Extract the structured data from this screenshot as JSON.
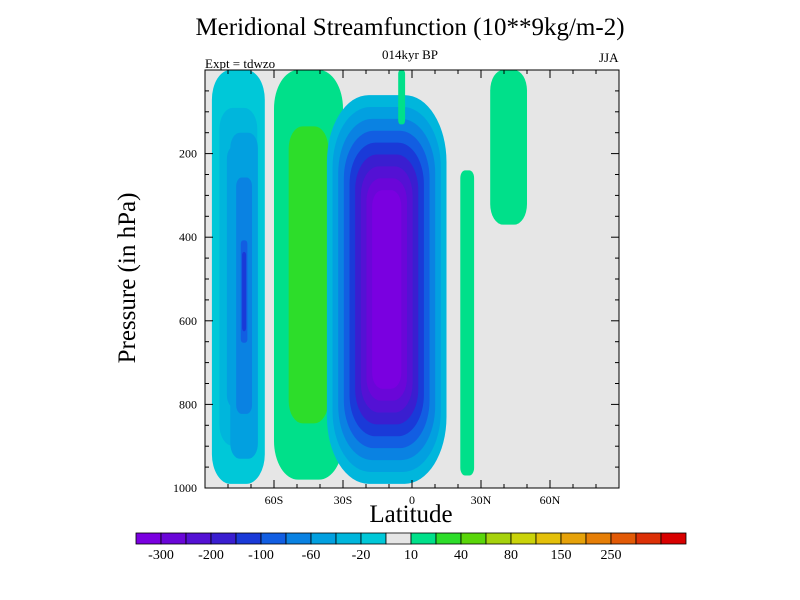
{
  "title": "Meridional Streamfunction (10**9kg/m-2)",
  "subtitle_center": "014kyr BP",
  "subtitle_left": "Expt = tdwzo",
  "subtitle_right": "JJA",
  "chart_data": {
    "type": "heatmap",
    "title": "Meridional Streamfunction (10**9kg/m-2)",
    "xlabel": "Latitude",
    "ylabel": "Pressure (in hPa)",
    "x_ticks": [
      {
        "value": -60,
        "label": "60S"
      },
      {
        "value": -30,
        "label": "30S"
      },
      {
        "value": 0,
        "label": "0"
      },
      {
        "value": 30,
        "label": "30N"
      },
      {
        "value": 60,
        "label": "60N"
      }
    ],
    "y_ticks": [
      {
        "value": 200,
        "label": "200"
      },
      {
        "value": 400,
        "label": "400"
      },
      {
        "value": 600,
        "label": "600"
      },
      {
        "value": 800,
        "label": "800"
      },
      {
        "value": 1000,
        "label": "1000"
      }
    ],
    "xlim": [
      -90,
      90
    ],
    "ylim": [
      1000,
      0
    ],
    "background_color": "#e6e6e6",
    "features": [
      {
        "name": "southern-cell-edge",
        "center_lat": -70,
        "level": -20,
        "lat_range": [
          -87,
          -64
        ],
        "p_range": [
          0,
          990
        ]
      },
      {
        "name": "southern-cell-core",
        "center_lat": -73,
        "level": -60,
        "lat_range": [
          -79,
          -67
        ],
        "p_range": [
          150,
          930
        ]
      },
      {
        "name": "southern-cell-min",
        "center_lat": -73,
        "level": -100,
        "lat_range": [
          -75,
          -71
        ],
        "p_range": [
          380,
          680
        ]
      },
      {
        "name": "ferrel-cell",
        "center_lat": -48,
        "level": 40,
        "lat_range": [
          -60,
          -30
        ],
        "p_range": [
          0,
          980
        ]
      },
      {
        "name": "hadley-cell-south",
        "center_lat": -2,
        "level": -300,
        "lat_range": [
          -37,
          15
        ],
        "p_range": [
          60,
          990
        ]
      },
      {
        "name": "hadley-north-edge",
        "center_lat": 24,
        "level": 10,
        "lat_range": [
          21,
          27
        ],
        "p_range": [
          240,
          970
        ]
      },
      {
        "name": "polar-north-band",
        "center_lat": 42,
        "level": 10,
        "lat_range": [
          34,
          50
        ],
        "p_range": [
          0,
          370
        ]
      },
      {
        "name": "equatorial-top",
        "center_lat": -4,
        "level": 10,
        "lat_range": [
          -6,
          -3
        ],
        "p_range": [
          0,
          130
        ]
      }
    ]
  },
  "colorbar": {
    "labels": [
      "-300",
      "-200",
      "-100",
      "-60",
      "-20",
      "10",
      "40",
      "80",
      "150",
      "250"
    ],
    "colors": [
      "#7a00e0",
      "#6a06d8",
      "#5411d4",
      "#3a1ed0",
      "#1a3ad8",
      "#125ee2",
      "#0a82e2",
      "#02a0e0",
      "#00b6dc",
      "#00c8d8",
      "#e6e6e6",
      "#00e08a",
      "#2ddd2a",
      "#5ad60a",
      "#a6d20c",
      "#cad30a",
      "#e4c00a",
      "#e6a20a",
      "#e67e06",
      "#e25a06",
      "#dc3006",
      "#d80000"
    ]
  }
}
